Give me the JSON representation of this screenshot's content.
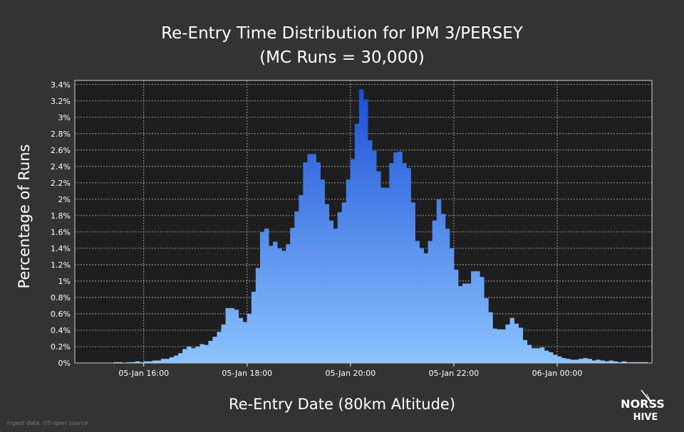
{
  "title_line1": "Re-Entry Time Distribution for IPM 3/PERSEY",
  "title_line2": "(MC Runs = 30,000)",
  "footnote": "Ingest data: US open source",
  "logo_text_1": "NORSS",
  "logo_text_2": "HIVE",
  "colors": {
    "background": "#333333",
    "plot_background": "#1e1e1e",
    "bar_top": "#1a4fd6",
    "bar_bottom": "#8cc3ff",
    "grid": "#bdbdbd"
  },
  "chart_data": {
    "type": "bar",
    "title": "Re-Entry Time Distribution for IPM 3/PERSEY (MC Runs = 30,000)",
    "xlabel": "Re-Entry Date (80km Altitude)",
    "ylabel": "Percentage of Runs",
    "ylim": [
      0,
      3.45
    ],
    "y_ticks": [
      "0%",
      "0.2%",
      "0.4%",
      "0.6%",
      "0.8%",
      "1%",
      "1.2%",
      "1.4%",
      "1.6%",
      "1.8%",
      "2%",
      "2.2%",
      "2.4%",
      "2.6%",
      "2.8%",
      "3%",
      "3.2%",
      "3.4%"
    ],
    "x_ticks": [
      "05-Jan 16:00",
      "05-Jan 18:00",
      "05-Jan 20:00",
      "05-Jan 22:00",
      "06-Jan 00:00"
    ],
    "x_start": "05-Jan 14:40",
    "x_end": "06-Jan 01:50",
    "bin_minutes": 5,
    "grid": true,
    "legend": "none",
    "values": [
      0,
      0,
      0,
      0,
      0,
      0,
      0,
      0,
      0,
      0.01,
      0.01,
      0,
      0.01,
      0.01,
      0.02,
      0.01,
      0.02,
      0.02,
      0.03,
      0.03,
      0.05,
      0.05,
      0.07,
      0.09,
      0.12,
      0.17,
      0.2,
      0.18,
      0.2,
      0.23,
      0.22,
      0.27,
      0.32,
      0.38,
      0.47,
      0.67,
      0.67,
      0.65,
      0.55,
      0.5,
      0.6,
      0.87,
      1.16,
      1.6,
      1.64,
      1.43,
      1.48,
      1.4,
      1.37,
      1.45,
      1.65,
      1.85,
      2.05,
      2.45,
      2.55,
      2.55,
      2.45,
      2.24,
      1.94,
      1.74,
      1.64,
      1.84,
      1.96,
      2.24,
      2.49,
      2.92,
      3.34,
      3.22,
      2.72,
      2.59,
      2.34,
      2.14,
      2.14,
      2.44,
      2.57,
      2.58,
      2.44,
      2.38,
      1.96,
      1.49,
      1.4,
      1.34,
      1.49,
      1.74,
      2,
      1.82,
      1.64,
      1.4,
      1.14,
      0.94,
      0.97,
      0.97,
      1.12,
      1.12,
      1.05,
      0.79,
      0.62,
      0.42,
      0.41,
      0.41,
      0.47,
      0.55,
      0.48,
      0.43,
      0.28,
      0.22,
      0.18,
      0.18,
      0.19,
      0.15,
      0.13,
      0.1,
      0.08,
      0.06,
      0.05,
      0.04,
      0.04,
      0.05,
      0.06,
      0.05,
      0.03,
      0.04,
      0.03,
      0.02,
      0.03,
      0.02,
      0.01,
      0.02,
      0.01,
      0.01,
      0.01,
      0.01,
      0.01,
      0,
      0
    ]
  }
}
